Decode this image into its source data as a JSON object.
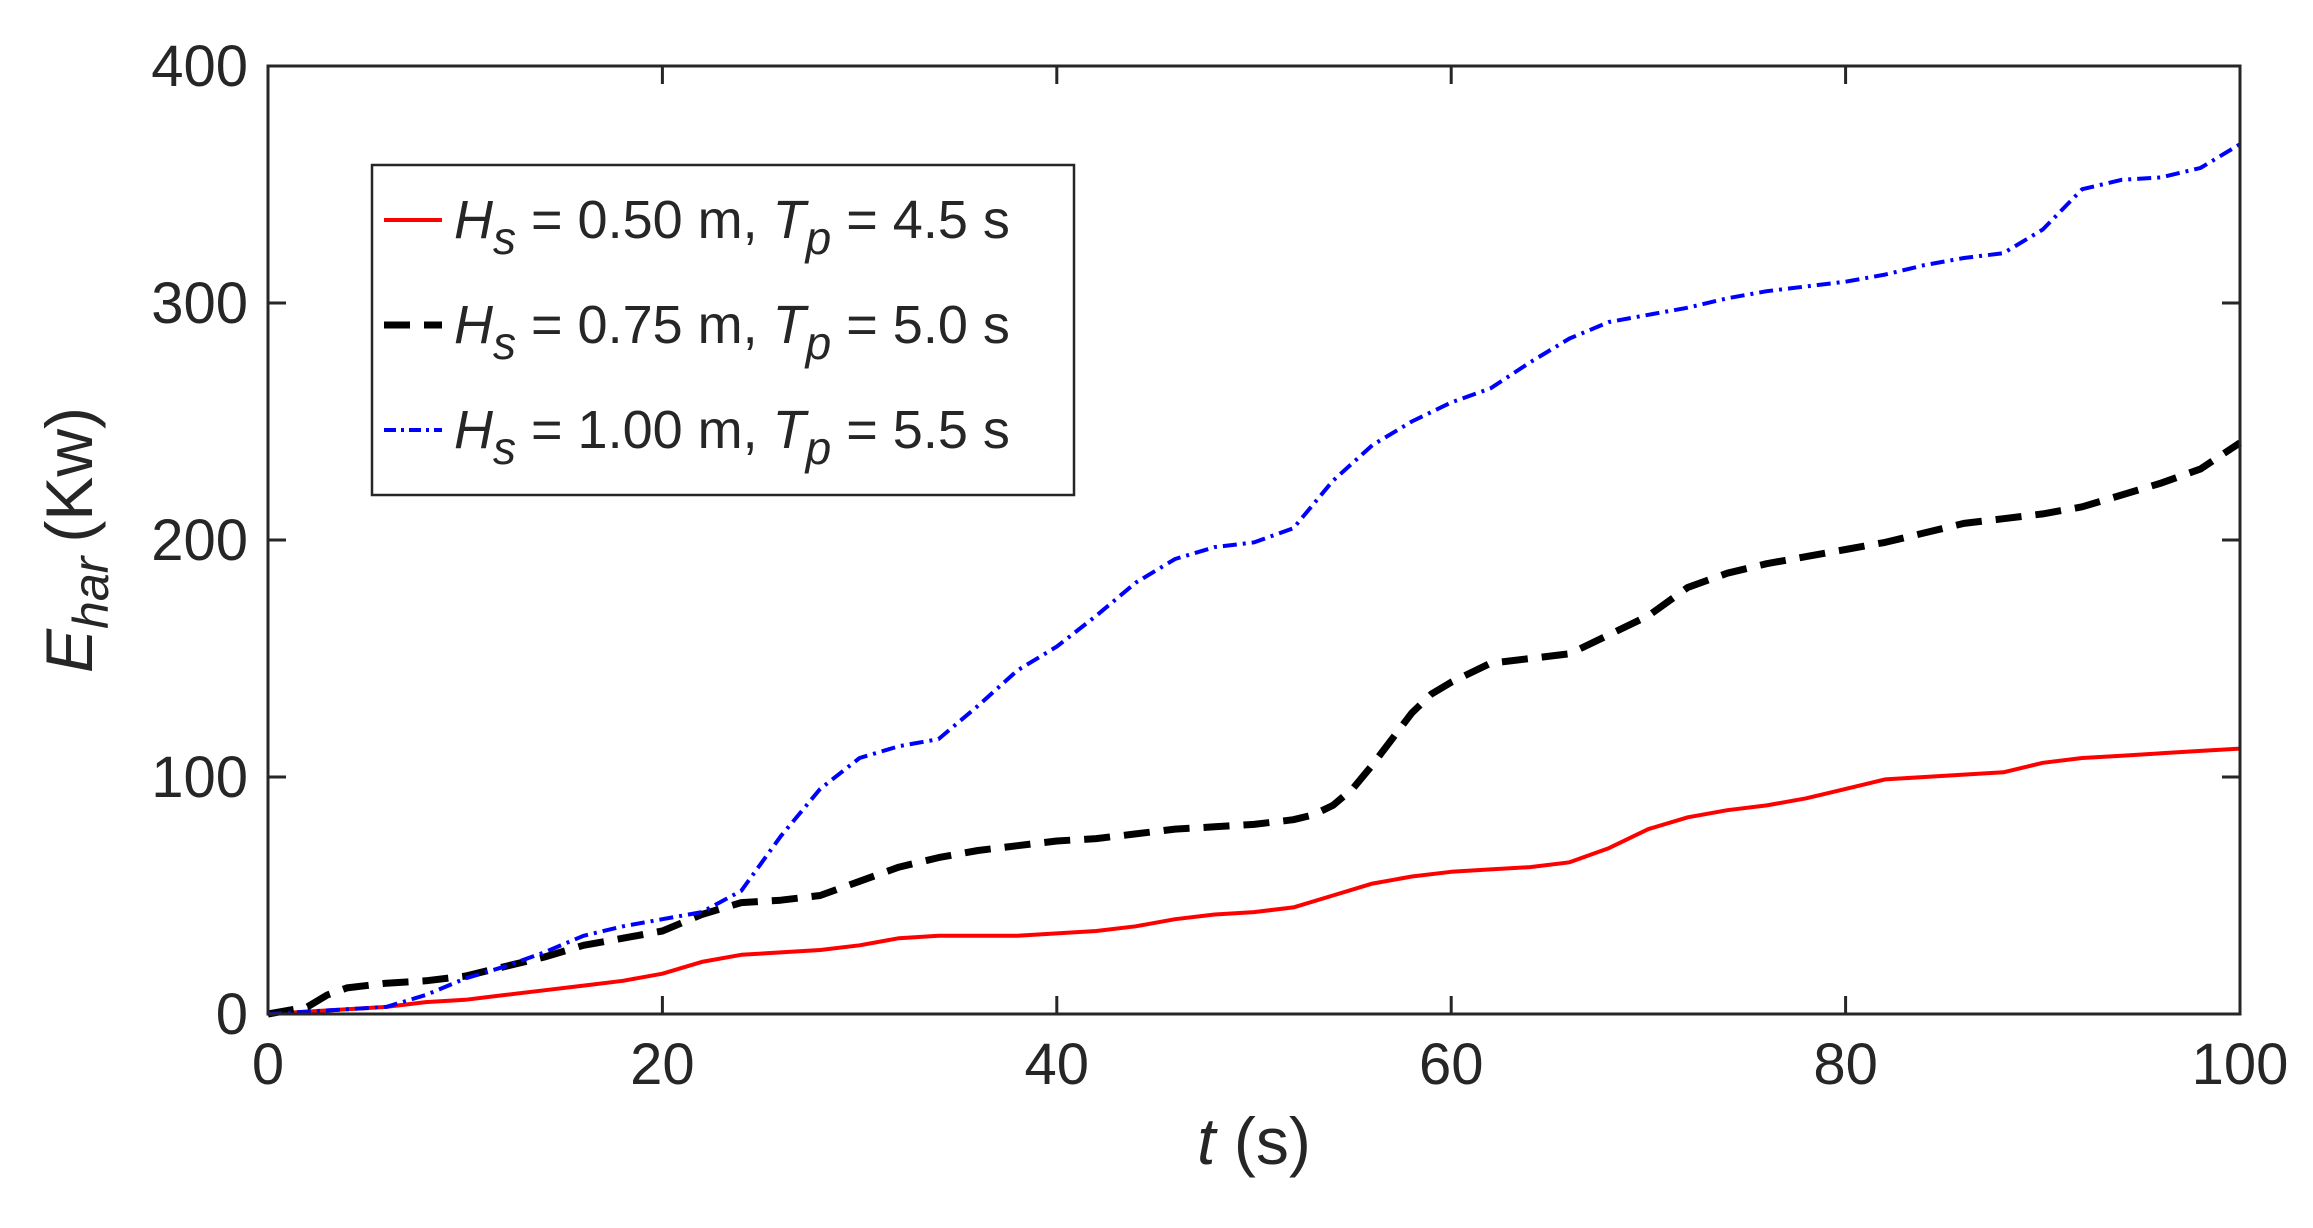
{
  "chart_data": {
    "type": "line",
    "title": "",
    "xlabel": {
      "var": "t",
      "unit": "(s)"
    },
    "ylabel": {
      "var": "E",
      "sub": "har",
      "unit": "(Kw)"
    },
    "xlim": [
      0,
      100
    ],
    "ylim": [
      0,
      400
    ],
    "xticks": [
      0,
      20,
      40,
      60,
      80,
      100
    ],
    "yticks": [
      0,
      100,
      200,
      300,
      400
    ],
    "grid": false,
    "legend_position": "top-left",
    "series": [
      {
        "name": "Hs = 0.50 m, Tp = 4.5 s",
        "label": {
          "hs": "0.50",
          "tp": "4.5"
        },
        "color": "#ff0000",
        "style": "solid",
        "x": [
          0,
          2,
          4,
          6,
          8,
          10,
          12,
          14,
          16,
          18,
          20,
          22,
          24,
          26,
          28,
          30,
          32,
          34,
          36,
          38,
          40,
          42,
          44,
          46,
          48,
          50,
          52,
          54,
          56,
          58,
          60,
          62,
          64,
          66,
          68,
          70,
          72,
          74,
          76,
          78,
          80,
          82,
          84,
          86,
          88,
          90,
          92,
          94,
          96,
          98,
          100
        ],
        "y": [
          0,
          1,
          2,
          3,
          5,
          6,
          8,
          10,
          12,
          14,
          17,
          22,
          25,
          26,
          27,
          29,
          32,
          33,
          33,
          33,
          34,
          35,
          37,
          40,
          42,
          43,
          45,
          50,
          55,
          58,
          60,
          61,
          62,
          64,
          70,
          78,
          83,
          86,
          88,
          91,
          95,
          99,
          100,
          101,
          102,
          106,
          108,
          109,
          110,
          111,
          112
        ]
      },
      {
        "name": "Hs = 0.75 m, Tp = 5.0 s",
        "label": {
          "hs": "0.75",
          "tp": "5.0"
        },
        "color": "#000000",
        "style": "dash",
        "x": [
          0,
          2,
          3,
          4,
          6,
          8,
          10,
          12,
          14,
          16,
          18,
          20,
          22,
          24,
          26,
          28,
          30,
          32,
          34,
          36,
          38,
          40,
          42,
          44,
          46,
          48,
          50,
          52,
          53,
          54,
          55,
          56,
          57,
          58,
          59,
          60,
          62,
          64,
          66,
          68,
          70,
          72,
          74,
          76,
          78,
          80,
          82,
          84,
          86,
          88,
          90,
          92,
          94,
          96,
          98,
          100
        ],
        "y": [
          0,
          3,
          8,
          11,
          13,
          14,
          16,
          20,
          24,
          29,
          32,
          35,
          42,
          47,
          48,
          50,
          56,
          62,
          66,
          69,
          71,
          73,
          74,
          76,
          78,
          79,
          80,
          82,
          84,
          88,
          95,
          105,
          116,
          127,
          135,
          140,
          148,
          150,
          152,
          160,
          168,
          180,
          186,
          190,
          193,
          196,
          199,
          203,
          207,
          209,
          211,
          214,
          219,
          224,
          230,
          241
        ]
      },
      {
        "name": "Hs = 1.00 m, Tp = 5.5 s",
        "label": {
          "hs": "1.00",
          "tp": "5.5"
        },
        "color": "#0000ff",
        "style": "dashdot",
        "x": [
          0,
          2,
          4,
          6,
          8,
          10,
          12,
          14,
          16,
          18,
          20,
          22,
          24,
          26,
          28,
          30,
          32,
          34,
          36,
          38,
          40,
          42,
          44,
          46,
          48,
          50,
          52,
          54,
          56,
          58,
          60,
          62,
          64,
          66,
          68,
          70,
          72,
          74,
          76,
          78,
          80,
          82,
          84,
          86,
          88,
          90,
          92,
          94,
          96,
          98,
          100
        ],
        "y": [
          0,
          1,
          2,
          3,
          8,
          15,
          20,
          26,
          33,
          37,
          40,
          43,
          52,
          75,
          95,
          108,
          113,
          116,
          130,
          145,
          155,
          168,
          182,
          192,
          197,
          199,
          205,
          225,
          240,
          250,
          258,
          264,
          275,
          285,
          292,
          295,
          298,
          302,
          305,
          307,
          309,
          312,
          316,
          319,
          321,
          331,
          348,
          352,
          353,
          357,
          367
        ]
      }
    ]
  }
}
